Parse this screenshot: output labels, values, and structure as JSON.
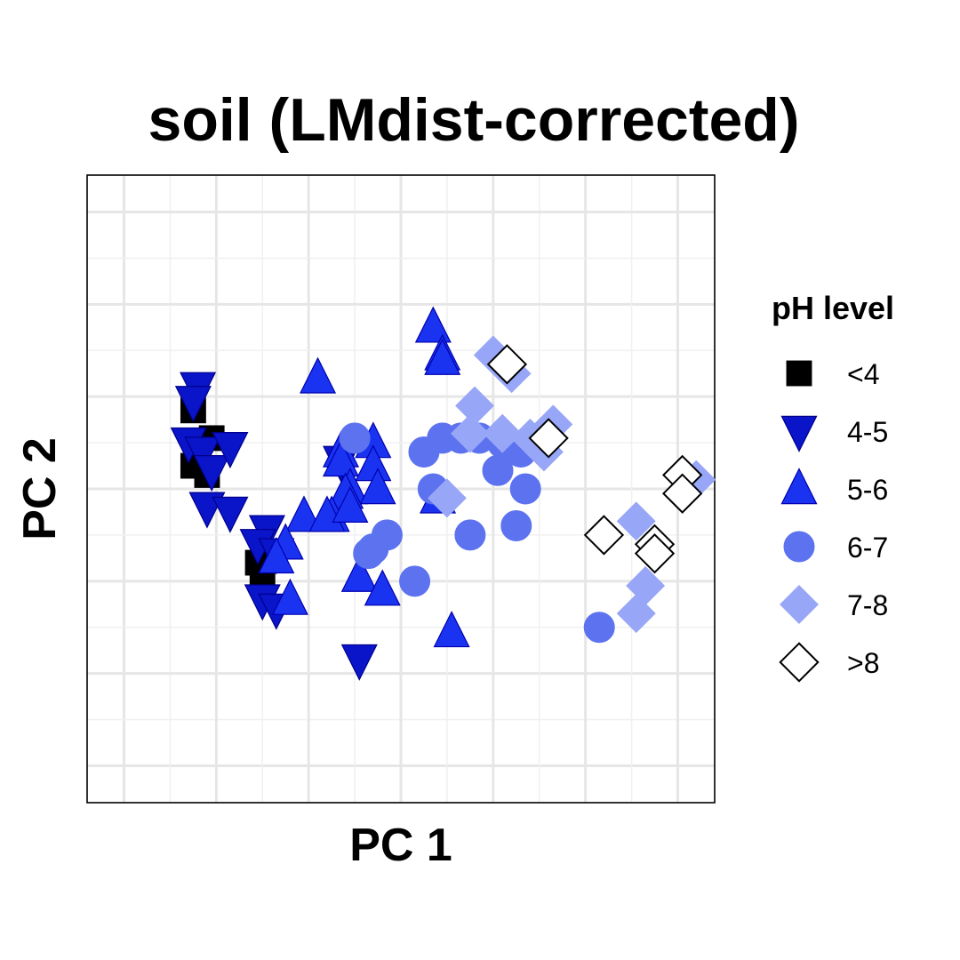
{
  "chart_data": {
    "type": "scatter",
    "title": "soil (LMdist-corrected)",
    "xlabel": "PC 1",
    "ylabel": "PC 2",
    "xlim": [
      -3.4,
      3.4
    ],
    "ylim": [
      -3.4,
      3.4
    ],
    "grid": true,
    "axis_ticks_shown": false,
    "legend": {
      "title": "pH level",
      "placement": "right"
    },
    "series": [
      {
        "name": "<4",
        "shape": "square",
        "fill": "#000000",
        "stroke": "#000000",
        "points": [
          [
            -2.25,
            0.85
          ],
          [
            -2.05,
            0.55
          ],
          [
            -2.25,
            0.25
          ],
          [
            -2.1,
            0.15
          ],
          [
            -1.55,
            -0.8
          ],
          [
            -1.5,
            -1.0
          ]
        ]
      },
      {
        "name": "4-5",
        "shape": "triangle-down",
        "fill": "#0a14c8",
        "stroke": "#00008b",
        "points": [
          [
            -2.2,
            1.1
          ],
          [
            -2.25,
            0.95
          ],
          [
            -2.3,
            0.5
          ],
          [
            -2.15,
            0.4
          ],
          [
            -2.05,
            0.2
          ],
          [
            -1.85,
            0.45
          ],
          [
            -2.1,
            -0.2
          ],
          [
            -1.85,
            -0.25
          ],
          [
            -1.45,
            -0.45
          ],
          [
            -1.55,
            -0.6
          ],
          [
            -1.35,
            -0.7
          ],
          [
            -1.5,
            -1.2
          ],
          [
            -1.35,
            -1.3
          ],
          [
            -0.65,
            0.3
          ],
          [
            -0.45,
            -1.85
          ]
        ]
      },
      {
        "name": "5-6",
        "shape": "triangle-up",
        "fill": "#1a33f0",
        "stroke": "#0000b0",
        "points": [
          [
            0.35,
            1.75
          ],
          [
            0.45,
            1.45
          ],
          [
            0.45,
            1.4
          ],
          [
            -0.9,
            1.2
          ],
          [
            -0.65,
            0.4
          ],
          [
            -0.65,
            0.3
          ],
          [
            -0.3,
            0.5
          ],
          [
            -0.3,
            0.25
          ],
          [
            -0.55,
            0.0
          ],
          [
            -0.6,
            -0.05
          ],
          [
            -0.75,
            -0.3
          ],
          [
            -1.05,
            -0.3
          ],
          [
            -0.8,
            -0.3
          ],
          [
            -0.55,
            -0.2
          ],
          [
            -0.25,
            0.0
          ],
          [
            -1.25,
            -0.6
          ],
          [
            -1.35,
            -0.75
          ],
          [
            -1.2,
            -1.2
          ],
          [
            -0.45,
            -0.95
          ],
          [
            -0.2,
            -1.1
          ],
          [
            0.4,
            -0.1
          ],
          [
            0.55,
            -1.55
          ]
        ]
      },
      {
        "name": "6-7",
        "shape": "circle",
        "fill": "#5c72ef",
        "stroke": "#5c72ef",
        "points": [
          [
            -0.5,
            0.55
          ],
          [
            0.25,
            0.4
          ],
          [
            0.45,
            0.55
          ],
          [
            0.65,
            0.55
          ],
          [
            0.85,
            0.55
          ],
          [
            1.1,
            0.5
          ],
          [
            1.3,
            0.4
          ],
          [
            0.35,
            0.0
          ],
          [
            1.05,
            0.2
          ],
          [
            1.35,
            0.0
          ],
          [
            -0.15,
            -0.5
          ],
          [
            -0.35,
            -0.7
          ],
          [
            -0.3,
            -0.65
          ],
          [
            0.15,
            -1.0
          ],
          [
            0.75,
            -0.5
          ],
          [
            1.25,
            -0.4
          ],
          [
            2.15,
            -1.5
          ]
        ]
      },
      {
        "name": "7-8",
        "shape": "diamond",
        "fill": "#97a6f7",
        "stroke": "#97a6f7",
        "points": [
          [
            1.0,
            1.45
          ],
          [
            1.2,
            1.25
          ],
          [
            0.8,
            0.9
          ],
          [
            0.75,
            0.6
          ],
          [
            1.1,
            0.6
          ],
          [
            1.4,
            0.55
          ],
          [
            1.55,
            0.4
          ],
          [
            1.65,
            0.7
          ],
          [
            0.5,
            -0.1
          ],
          [
            2.55,
            -0.35
          ],
          [
            2.65,
            -1.05
          ],
          [
            2.55,
            -1.35
          ],
          [
            3.2,
            0.1
          ]
        ]
      },
      {
        "name": ">8",
        "shape": "diamond-open",
        "fill": "#ffffff",
        "stroke": "#000000",
        "points": [
          [
            1.15,
            1.35
          ],
          [
            1.6,
            0.55
          ],
          [
            2.2,
            -0.5
          ],
          [
            2.75,
            -0.6
          ],
          [
            2.75,
            -0.7
          ],
          [
            3.05,
            0.15
          ],
          [
            3.05,
            -0.05
          ]
        ]
      }
    ]
  }
}
